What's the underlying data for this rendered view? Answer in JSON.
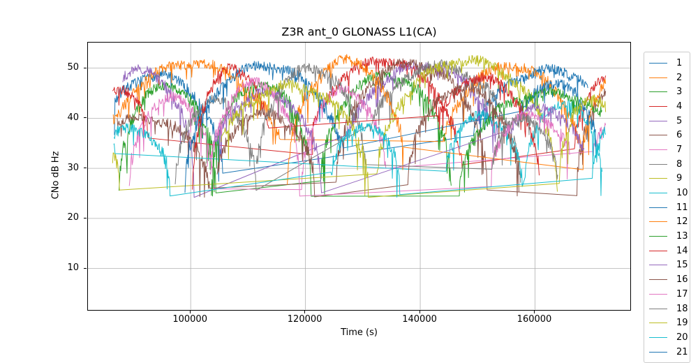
{
  "figure": {
    "background": "#ffffff",
    "grid_color": "#b0b0b0",
    "spine_color": "#000000"
  },
  "chart_data": {
    "type": "line",
    "title": "Z3R ant_0 GLONASS L1(CA)",
    "xlabel": "Time (s)",
    "ylabel": "CNo dB Hz",
    "grid": true,
    "legend_position": "right-outside",
    "xlim": [
      82100,
      176600
    ],
    "ylim": [
      1.8,
      55.1
    ],
    "xticks": [
      100000,
      120000,
      140000,
      160000
    ],
    "xtick_labels": [
      "100000",
      "120000",
      "140000",
      "160000"
    ],
    "yticks": [
      10,
      20,
      30,
      40,
      50
    ],
    "ytick_labels": [
      "10",
      "20",
      "30",
      "40",
      "50"
    ],
    "time_range_s": [
      86400,
      172300
    ],
    "cno_floor_db": 24.5,
    "noise_db": 1.2,
    "pass_format": "[t_rise_s, t_set_s, peak_cno_db, cno_at_first_sample_db, cno_at_last_sample_db]",
    "series": [
      {
        "name": "1",
        "color": "#1f77b4",
        "passes": [
          [
            82500,
            105800,
            48.5,
            43,
            30
          ],
          [
            147000,
            178000,
            49.5,
            38,
            47
          ]
        ]
      },
      {
        "name": "2",
        "color": "#ff7f0e",
        "passes": [
          [
            84000,
            116800,
            51,
            39,
            35
          ],
          [
            142800,
            168800,
            50.5,
            36,
            33
          ]
        ]
      },
      {
        "name": "3",
        "color": "#2ca02c",
        "passes": [
          [
            87500,
            104400,
            46.5,
            26,
            25.5
          ],
          [
            122600,
            145400,
            48.5,
            27,
            26
          ]
        ]
      },
      {
        "name": "4",
        "color": "#d62728",
        "passes": [
          [
            81000,
            93800,
            46,
            45,
            37
          ],
          [
            119400,
            147600,
            51.5,
            38,
            30
          ],
          [
            166300,
            178500,
            48,
            35,
            46
          ]
        ]
      },
      {
        "name": "5",
        "color": "#9467bd",
        "passes": [
          [
            82000,
            100600,
            49.5,
            48,
            25.5
          ],
          [
            125800,
            155200,
            50.5,
            36,
            37
          ]
        ]
      },
      {
        "name": "6",
        "color": "#8c564b",
        "passes": [
          [
            80000,
            103300,
            40,
            38.8,
            25
          ],
          [
            125300,
            151700,
            51,
            25.5,
            27.5
          ],
          [
            167300,
            178500,
            45,
            24.8,
            43
          ]
        ]
      },
      {
        "name": "7",
        "color": "#e377c2",
        "passes": [
          [
            89300,
            104000,
            44,
            25.5,
            25.5
          ],
          [
            119300,
            134200,
            45.5,
            27,
            30
          ],
          [
            169300,
            178000,
            39,
            33,
            38
          ]
        ]
      },
      {
        "name": "8",
        "color": "#7f7f7f",
        "passes": [
          [
            97300,
            111400,
            43.5,
            25.5,
            25.5
          ],
          [
            129300,
            157500,
            50.5,
            38,
            27
          ]
        ]
      },
      {
        "name": "9",
        "color": "#bcbd22",
        "passes": [
          [
            85000,
            87600,
            33,
            32.5,
            25.6
          ],
          [
            132300,
            163900,
            51.5,
            29,
            25.8
          ]
        ]
      },
      {
        "name": "10",
        "color": "#17becf",
        "passes": [
          [
            86400,
            87000,
            35,
            34.3,
            34
          ],
          [
            144000,
            157800,
            40.5,
            31,
            26.5
          ],
          [
            158200,
            171800,
            43,
            28,
            28.5
          ]
        ]
      },
      {
        "name": "11",
        "color": "#1f77b4",
        "passes": [
          [
            99000,
            127200,
            50.5,
            25.5,
            33
          ],
          [
            154500,
            172000,
            47,
            41,
            37
          ]
        ]
      },
      {
        "name": "12",
        "color": "#ff7f0e",
        "passes": [
          [
            116800,
            137600,
            51.5,
            27,
            34
          ],
          [
            167800,
            180000,
            48,
            35,
            47
          ]
        ]
      },
      {
        "name": "13",
        "color": "#2ca02c",
        "passes": [
          [
            103600,
            121000,
            47,
            26,
            26
          ],
          [
            146800,
            178000,
            45,
            25.5,
            41
          ]
        ]
      },
      {
        "name": "14",
        "color": "#d62728",
        "passes": [
          [
            100300,
            114700,
            50,
            26,
            38.5
          ],
          [
            140600,
            160800,
            48,
            40,
            28
          ]
        ]
      },
      {
        "name": "15",
        "color": "#9467bd",
        "passes": [
          [
            102800,
            122800,
            45,
            34,
            25.5
          ],
          [
            152500,
            169500,
            42,
            37,
            33
          ]
        ]
      },
      {
        "name": "16",
        "color": "#8c564b",
        "passes": [
          [
            104200,
            121600,
            41,
            30,
            25.5
          ],
          [
            137800,
            157200,
            46,
            27,
            25.5
          ]
        ]
      },
      {
        "name": "17",
        "color": "#e377c2",
        "passes": [
          [
            103300,
            119000,
            47,
            28,
            26
          ],
          [
            151800,
            167200,
            40.5,
            31,
            33
          ]
        ]
      },
      {
        "name": "18",
        "color": "#7f7f7f",
        "passes": [
          [
            111300,
            130700,
            50,
            30,
            31
          ],
          [
            152000,
            164000,
            40,
            31,
            27
          ]
        ]
      },
      {
        "name": "19",
        "color": "#bcbd22",
        "passes": [
          [
            103800,
            131000,
            46.5,
            35,
            27
          ],
          [
            164200,
            175500,
            44,
            27,
            41
          ]
        ]
      },
      {
        "name": "20",
        "color": "#17becf",
        "passes": [
          [
            83000,
            96400,
            38,
            36.5,
            24.8
          ],
          [
            124300,
            136500,
            38.5,
            28,
            27
          ],
          [
            169800,
            177500,
            38,
            29,
            37
          ]
        ]
      },
      {
        "name": "21",
        "color": "#1f77b4",
        "passes": []
      }
    ]
  }
}
